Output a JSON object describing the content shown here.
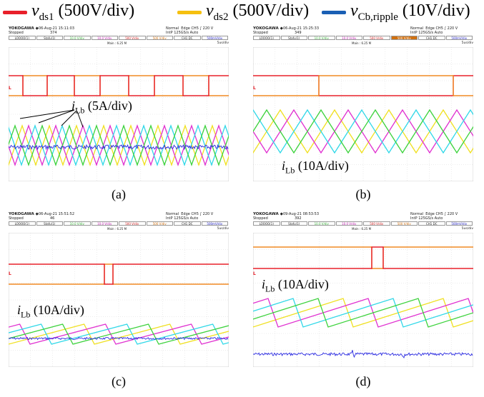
{
  "legend": [
    {
      "symbol": "v",
      "sub": "ds1",
      "unit": "(500V/div)",
      "color": "#e8202a"
    },
    {
      "symbol": "v",
      "sub": "ds2",
      "unit": "(500V/div)",
      "color": "#f5c010"
    },
    {
      "symbol": "v",
      "sub": "Cb,ripple",
      "unit": "(10V/div)",
      "color": "#1a5fb4"
    }
  ],
  "scope": {
    "brand": "YOKOGAWA ◆",
    "status": "Stopped",
    "channels": [
      "LOOOO(1)",
      "Stafu(1)",
      "10.0 V/div",
      "10.0 V/div",
      "500 V/div",
      "500 V/div",
      "CH1 DC",
      "500mV/div"
    ]
  },
  "panels": [
    {
      "id": "a",
      "caption": "(a)",
      "timestamp": "06-Aug-21 15:11:03",
      "acq_count": "374",
      "trig_info": "Normal  Edge CH5 ∫ 220 V\nIntP 125GS/s Auto",
      "main": "Main : 6.25 M",
      "time_div": "5us/div",
      "cur_label": {
        "symbol": "i",
        "sub": "Lb",
        "unit": "(5A/div)"
      }
    },
    {
      "id": "b",
      "caption": "(b)",
      "timestamp": "06-Aug-21 15:25:33",
      "acq_count": "349",
      "trig_info": "Normal  Edge CH5 ∫ 220 V\nIntP 125GS/s Auto",
      "main": "Main : 6.25 M",
      "time_div": "5us/div",
      "cur_label": {
        "symbol": "i",
        "sub": "Lb",
        "unit": "(10A/div)"
      }
    },
    {
      "id": "c",
      "caption": "(c)",
      "timestamp": "06-Aug-21 15:51:52",
      "acq_count": "46",
      "trig_info": "Normal  Edge CH5 ∫ 220 V\nIntP 125GS/s Auto",
      "main": "Main : 6.25 M",
      "time_div": "5us/div",
      "cur_label": {
        "symbol": "i",
        "sub": "Lb",
        "unit": "(10A/div)"
      }
    },
    {
      "id": "d",
      "caption": "(d)",
      "timestamp": "09-Aug-21 08:53:53",
      "acq_count": "392",
      "trig_info": "Normal  Edge CH5 ∫ 220 V\nIntP 125GS/s Auto",
      "main": "Main : 6.25 M",
      "time_div": "5us/div",
      "cur_label": {
        "symbol": "i",
        "sub": "Lb",
        "unit": "(10A/div)"
      }
    }
  ],
  "markers": {
    "ch_l": "L",
    "ch_r": "R"
  },
  "trace_colors": {
    "red": "#e8202a",
    "orange": "#f08a24",
    "yellow": "#f0e020",
    "green": "#3cd23c",
    "magenta": "#e030d0",
    "cyan": "#30d8e8",
    "blue": "#2a2ae0",
    "grid": "#d0d0d0"
  }
}
